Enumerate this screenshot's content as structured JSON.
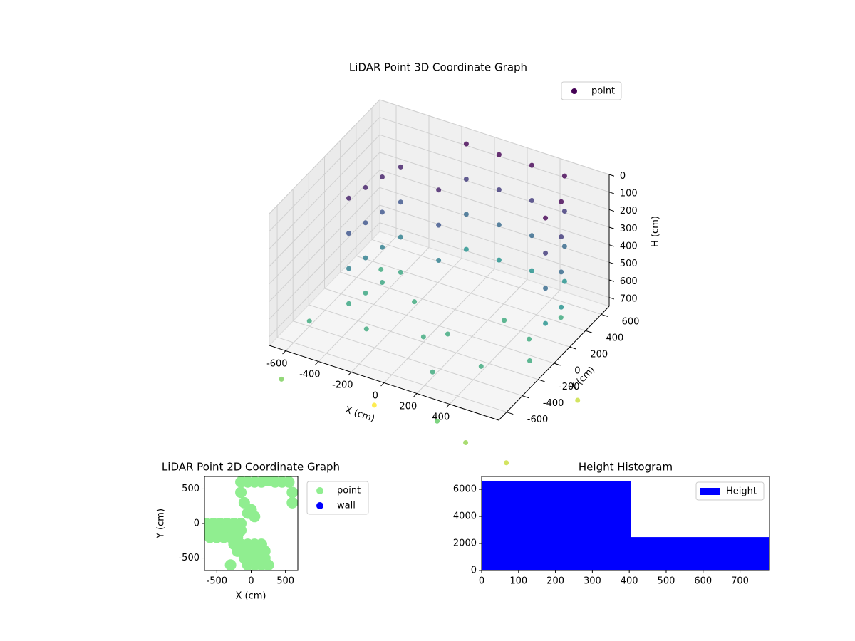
{
  "chart_data": [
    {
      "type": "scatter3d",
      "title": "LiDAR Point 3D Coordinate Graph",
      "xlabel": "X (cm)",
      "ylabel": "Y (cm)",
      "zlabel": "H (cm)",
      "xlim": [
        -700,
        700
      ],
      "ylim": [
        -700,
        700
      ],
      "zlim": [
        0,
        750
      ],
      "zinvert": true,
      "xticks": [
        -600,
        -400,
        -200,
        0,
        200,
        400
      ],
      "yticks": [
        -600,
        -400,
        -200,
        0,
        200,
        400,
        600
      ],
      "zticks": [
        0,
        100,
        200,
        300,
        400,
        500,
        600,
        700
      ],
      "grid": true,
      "legend": "upper right",
      "colormap": "viridis",
      "series": [
        {
          "name": "point",
          "x": [
            -480,
            -480,
            -480,
            -480,
            -450,
            -450,
            -450,
            -450,
            -420,
            -420,
            -420,
            -420,
            -380,
            -380,
            -380,
            -380,
            -100,
            -100,
            -100,
            -100,
            100,
            100,
            100,
            100,
            300,
            300,
            300,
            300,
            500,
            500,
            500,
            500,
            600,
            600,
            600,
            600,
            600,
            600,
            600,
            600,
            -100,
            -100,
            -100,
            -600,
            -300,
            0,
            200,
            400,
            500,
            600,
            -200,
            300,
            -500,
            100,
            550,
            300,
            450,
            650,
            700,
            -650,
            -300
          ],
          "y": [
            -150,
            -150,
            -150,
            -150,
            0,
            0,
            0,
            0,
            150,
            150,
            150,
            150,
            300,
            300,
            300,
            300,
            550,
            550,
            550,
            550,
            550,
            550,
            550,
            550,
            550,
            550,
            550,
            550,
            550,
            550,
            550,
            550,
            300,
            300,
            300,
            300,
            100,
            100,
            100,
            100,
            200,
            200,
            200,
            -400,
            -300,
            -200,
            -500,
            -300,
            100,
            -100,
            100,
            200,
            300,
            -100,
            400,
            -650,
            -600,
            -500,
            300,
            -650,
            -200
          ],
          "z": [
            100,
            300,
            500,
            700,
            100,
            300,
            500,
            700,
            100,
            300,
            500,
            700,
            100,
            300,
            500,
            700,
            0,
            200,
            400,
            600,
            0,
            200,
            400,
            600,
            0,
            200,
            400,
            600,
            0,
            200,
            400,
            600,
            0,
            200,
            400,
            600,
            0,
            200,
            400,
            600,
            100,
            300,
            500,
            720,
            720,
            720,
            720,
            720,
            720,
            720,
            720,
            720,
            720,
            720,
            720,
            900,
            1000,
            1100,
            1100,
            950,
            1200
          ]
        }
      ]
    },
    {
      "type": "scatter",
      "title": "LiDAR Point 2D Coordinate Graph",
      "xlabel": "X (cm)",
      "ylabel": "Y (cm)",
      "xlim": [
        -680,
        680
      ],
      "ylim": [
        -680,
        680
      ],
      "xticks": [
        -500,
        0,
        500
      ],
      "yticks": [
        -500,
        0,
        500
      ],
      "legend": "outside right",
      "series": [
        {
          "name": "point",
          "color": "#90ee90",
          "x": [
            -150,
            -50,
            50,
            150,
            250,
            350,
            450,
            550,
            600,
            600,
            -150,
            -100,
            -50,
            -650,
            -550,
            -450,
            -350,
            -250,
            -150,
            -650,
            -550,
            -450,
            -350,
            -250,
            -150,
            -600,
            -500,
            -400,
            -300,
            -200,
            -250,
            -150,
            -50,
            50,
            150,
            -200,
            -100,
            0,
            100,
            200,
            -100,
            0,
            100,
            200,
            -50,
            50,
            150,
            250,
            -300,
            0,
            50
          ],
          "y": [
            600,
            600,
            600,
            600,
            620,
            600,
            600,
            600,
            450,
            300,
            450,
            300,
            150,
            0,
            0,
            0,
            0,
            0,
            0,
            -100,
            -100,
            -100,
            -100,
            -100,
            -100,
            -200,
            -200,
            -200,
            -200,
            -200,
            -300,
            -300,
            -300,
            -300,
            -300,
            -400,
            -400,
            -400,
            -400,
            -400,
            -500,
            -500,
            -500,
            -500,
            -600,
            -600,
            -600,
            -600,
            -600,
            200,
            100
          ]
        },
        {
          "name": "wall",
          "color": "#0000ff",
          "x": [],
          "y": []
        }
      ]
    },
    {
      "type": "histogram",
      "title": "Height Histogram",
      "xlim": [
        0,
        780
      ],
      "ylim": [
        0,
        6950
      ],
      "xticks": [
        0,
        100,
        200,
        300,
        400,
        500,
        600,
        700
      ],
      "yticks": [
        0,
        2000,
        4000,
        6000
      ],
      "legend": "upper right",
      "series": [
        {
          "name": "Height",
          "color": "#0000ff",
          "bins": [
            0,
            404,
            780
          ],
          "values": [
            6630,
            2470
          ]
        }
      ]
    }
  ]
}
